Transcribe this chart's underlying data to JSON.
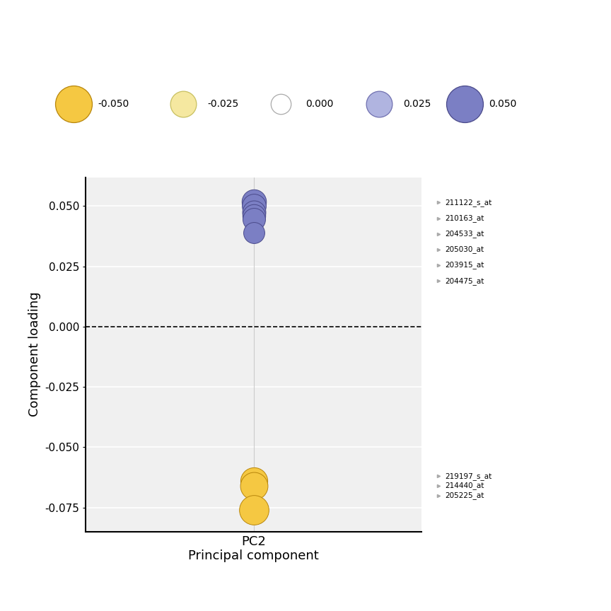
{
  "pc_label": "PC2",
  "xlabel": "Principal component",
  "ylabel": "Component loading",
  "ylim": [
    -0.085,
    0.062
  ],
  "yticks": [
    -0.075,
    -0.05,
    -0.025,
    0.0,
    0.025,
    0.05
  ],
  "blue_features": [
    {
      "name": "211122_s_at",
      "loading": 0.052
    },
    {
      "name": "210163_at",
      "loading": 0.05
    },
    {
      "name": "204533_at",
      "loading": 0.0475
    },
    {
      "name": "205030_at",
      "loading": 0.046
    },
    {
      "name": "203915_at",
      "loading": 0.0445
    },
    {
      "name": "204475_at",
      "loading": 0.039
    }
  ],
  "yellow_features": [
    {
      "name": "219197_s_at",
      "loading": -0.064
    },
    {
      "name": "214440_at",
      "loading": -0.066
    },
    {
      "name": "205225_at",
      "loading": -0.076
    }
  ],
  "blue_color": "#7b7fc4",
  "yellow_color": "#f5c842",
  "yellow_edge": "#b8860b",
  "blue_edge": "#4a4a8a",
  "legend_values": [
    -0.05,
    -0.025,
    0.0,
    0.025,
    0.05
  ],
  "legend_colors": [
    "#f5c842",
    "#f5e8a0",
    "#ffffff",
    "#b0b4e0",
    "#7b7fc4"
  ],
  "legend_edge_colors": [
    "#b8860b",
    "#c8c060",
    "#aaaaaa",
    "#7070b0",
    "#4a4a8a"
  ],
  "line_color": "#aaaaaa",
  "plot_bg": "#f0f0f0",
  "grid_color": "#ffffff"
}
